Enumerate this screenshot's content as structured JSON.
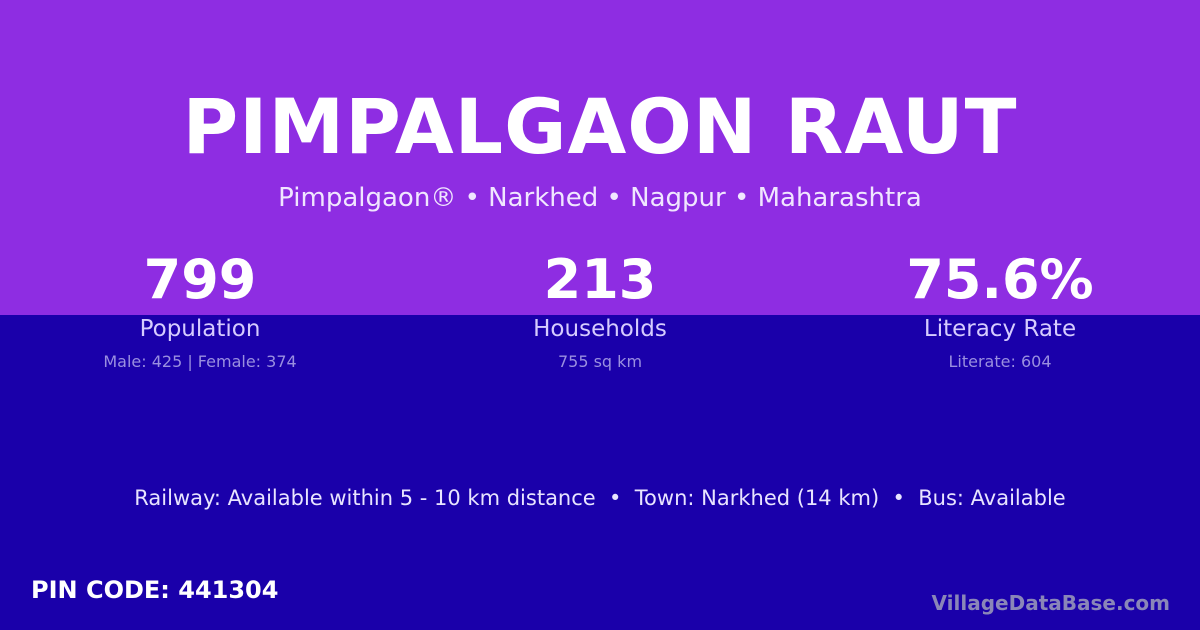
{
  "title": "PIMPALGAON RAUT",
  "subtitle": "Pimpalgaon® • Narkhed • Nagpur • Maharashtra",
  "stats": [
    {
      "value": "799",
      "label": "Population",
      "detail": "Male: 425 | Female: 374"
    },
    {
      "value": "213",
      "label": "Households",
      "detail": "755 sq km"
    },
    {
      "value": "75.6%",
      "label": "Literacy Rate",
      "detail": "Literate: 604"
    }
  ],
  "info": "Railway: Available within 5 - 10 km distance  •  Town: Narkhed (14 km)  •  Bus: Available",
  "pin": "PIN CODE: 441304",
  "brand": "VillageDataBase.com",
  "colors": {
    "top": "#8e2de2",
    "bottom": "#1a00aa"
  }
}
